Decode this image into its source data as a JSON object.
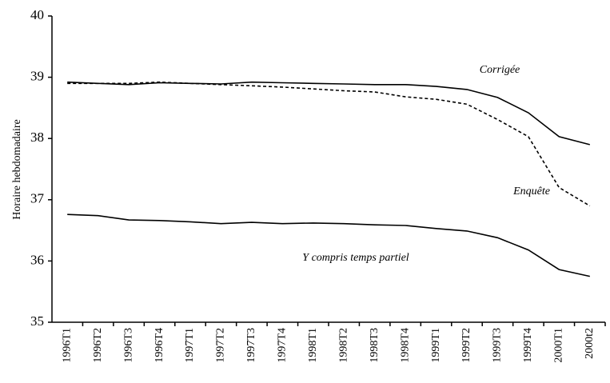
{
  "chart_data": {
    "type": "line",
    "y_label": "Horaire hebdomadaire",
    "categories": [
      "1996T1",
      "1996T2",
      "1996T3",
      "1996T4",
      "1997T1",
      "1997T2",
      "1997T3",
      "1997T4",
      "1998T1",
      "1998T2",
      "1998T3",
      "1998T4",
      "1999T1",
      "1999T2",
      "1999T3",
      "1999T4",
      "2000T1",
      "2000t2"
    ],
    "series": [
      {
        "name": "Corrigée",
        "color": "#000000",
        "dashed": false,
        "values": [
          38.92,
          38.9,
          38.88,
          38.91,
          38.9,
          38.89,
          38.92,
          38.91,
          38.9,
          38.89,
          38.88,
          38.88,
          38.85,
          38.8,
          38.67,
          38.42,
          38.03,
          37.9
        ]
      },
      {
        "name": "Enquête",
        "color": "#000000",
        "dashed": true,
        "values": [
          38.9,
          38.9,
          38.9,
          38.92,
          38.9,
          38.88,
          38.86,
          38.84,
          38.81,
          38.78,
          38.76,
          38.68,
          38.64,
          38.56,
          38.31,
          38.03,
          37.2,
          36.9
        ]
      },
      {
        "name": "Y compris temps partiel",
        "color": "#000000",
        "dashed": false,
        "values": [
          36.76,
          36.74,
          36.67,
          36.66,
          36.64,
          36.61,
          36.63,
          36.61,
          36.62,
          36.61,
          36.59,
          36.58,
          36.53,
          36.49,
          36.38,
          36.18,
          35.86,
          35.75
        ]
      }
    ],
    "ylim": [
      35,
      40
    ],
    "yticks": [
      35,
      36,
      37,
      38,
      39,
      40
    ],
    "grid": false,
    "legend": false
  }
}
